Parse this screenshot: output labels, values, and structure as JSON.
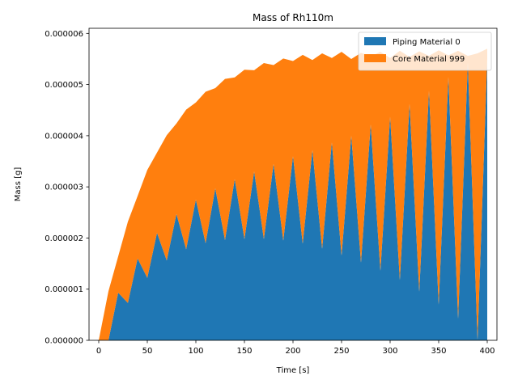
{
  "chart_data": {
    "type": "area",
    "stacked": true,
    "title": "Mass of Rh110m",
    "xlabel": "Time [s]",
    "ylabel": "Mass [g]",
    "xlim": [
      -10,
      410
    ],
    "ylim": [
      0,
      6.1e-06
    ],
    "xticks": [
      0,
      50,
      100,
      150,
      200,
      250,
      300,
      350,
      400
    ],
    "xtick_labels": [
      "0",
      "50",
      "100",
      "150",
      "200",
      "250",
      "300",
      "350",
      "400"
    ],
    "yticks": [
      0,
      1e-06,
      2e-06,
      3e-06,
      4e-06,
      5e-06,
      6e-06
    ],
    "ytick_labels": [
      "0.000000",
      "0.000001",
      "0.000002",
      "0.000003",
      "0.000004",
      "0.000005",
      "0.000006"
    ],
    "grid": false,
    "legend_position": "top-right",
    "x": [
      0,
      10,
      20,
      30,
      40,
      50,
      60,
      70,
      80,
      90,
      100,
      110,
      120,
      130,
      140,
      150,
      160,
      170,
      180,
      190,
      200,
      210,
      220,
      230,
      240,
      250,
      260,
      270,
      280,
      290,
      300,
      310,
      320,
      330,
      340,
      350,
      360,
      370,
      380,
      390,
      400
    ],
    "series": [
      {
        "name": "Piping Material 0",
        "color": "#1f77b4",
        "values": [
          0,
          0,
          9.3e-07,
          7.3e-07,
          1.6e-06,
          1.22e-06,
          2.1e-06,
          1.56e-06,
          2.47e-06,
          1.78e-06,
          2.75e-06,
          1.9e-06,
          2.97e-06,
          1.96e-06,
          3.15e-06,
          1.98e-06,
          3.3e-06,
          1.98e-06,
          3.45e-06,
          1.95e-06,
          3.6e-06,
          1.89e-06,
          3.72e-06,
          1.79e-06,
          3.87e-06,
          1.66e-06,
          4e-06,
          1.52e-06,
          4.22e-06,
          1.36e-06,
          4.37e-06,
          1.18e-06,
          4.62e-06,
          9.5e-07,
          4.88e-06,
          7e-07,
          5.15e-06,
          4.2e-07,
          5.43e-06,
          1e-08,
          5.5e-06
        ]
      },
      {
        "name": "Core Material 999",
        "color": "#ff7f0e",
        "values": [
          0,
          9.6e-07,
          7.1e-07,
          1.59e-06,
          1.22e-06,
          2.11e-06,
          1.57e-06,
          2.45e-06,
          1.77e-06,
          2.73e-06,
          1.9e-06,
          2.96e-06,
          1.96e-06,
          3.15e-06,
          1.99e-06,
          3.31e-06,
          1.98e-06,
          3.44e-06,
          1.93e-06,
          3.56e-06,
          1.86e-06,
          3.69e-06,
          1.76e-06,
          3.82e-06,
          1.65e-06,
          3.98e-06,
          1.5e-06,
          4.1e-06,
          1.33e-06,
          4.28e-06,
          1.15e-06,
          4.48e-06,
          9.2e-07,
          4.7e-06,
          6.8e-07,
          4.97e-06,
          4.2e-07,
          5.24e-06,
          1.3e-07,
          5.6e-06,
          2e-07
        ]
      }
    ]
  }
}
